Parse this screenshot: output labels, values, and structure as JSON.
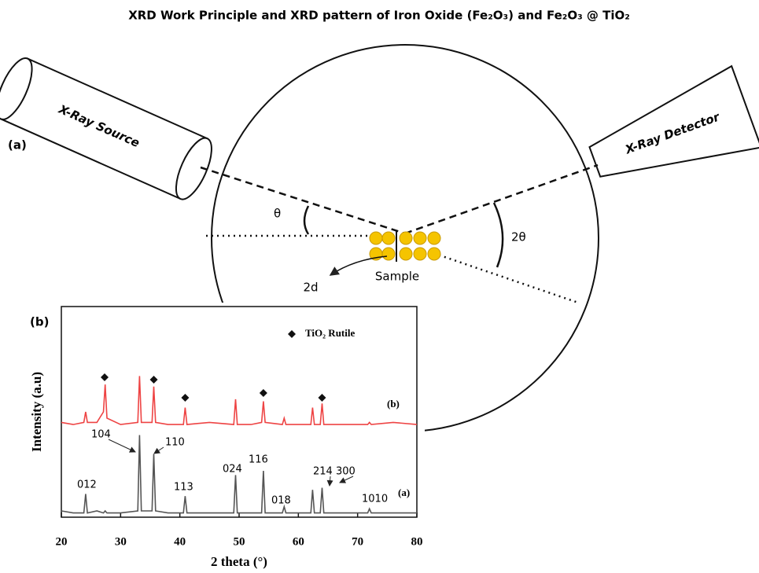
{
  "title": "XRD Work Principle and XRD pattern of Iron Oxide (Fe₂O₃) and Fe₂O₃ @ TiO₂",
  "diagram": {
    "panel_label": "(a)",
    "source": "X-Ray Source",
    "detector": "X-Ray Detector",
    "theta": "θ",
    "two_theta": "2θ",
    "spacing": "2d",
    "sample": "Sample"
  },
  "chart_data": {
    "type": "line",
    "panel_label": "(b)",
    "x_label": "2 theta (°)",
    "y_label": "Intensity (a.u)",
    "xlim": [
      20,
      80
    ],
    "xticks": [
      20,
      30,
      40,
      50,
      60,
      70,
      80
    ],
    "ylim": [
      0,
      100
    ],
    "x": [
      20,
      22,
      23.8,
      24.1,
      24.4,
      26,
      27.1,
      27.4,
      27.7,
      30,
      32.9,
      33.2,
      33.5,
      35.3,
      35.6,
      35.9,
      38,
      40.6,
      40.9,
      41.2,
      45,
      49.1,
      49.4,
      49.7,
      52,
      53.8,
      54.1,
      54.4,
      57.3,
      57.6,
      57.9,
      60,
      62.1,
      62.4,
      62.7,
      63.7,
      64.0,
      64.3,
      68,
      71.7,
      72.0,
      72.3,
      76,
      80
    ],
    "series": [
      {
        "name": "(a)",
        "color": "#555555",
        "values": [
          3,
          2,
          2,
          11,
          2,
          3,
          2,
          3,
          2,
          2,
          3,
          39,
          3,
          3,
          30,
          3,
          2,
          2,
          10,
          2,
          2,
          2,
          20,
          2,
          2,
          2,
          22,
          2,
          2,
          5,
          2,
          2,
          2,
          13,
          2,
          2,
          14,
          2,
          2,
          2,
          4,
          2,
          2,
          2
        ]
      },
      {
        "name": "(b)",
        "color": "#ee4444",
        "values": [
          45,
          44,
          45,
          50,
          45,
          45,
          50,
          63,
          47,
          44,
          45,
          67,
          45,
          45,
          62,
          45,
          44,
          44,
          52,
          44,
          45,
          44,
          56,
          44,
          44,
          45,
          55,
          45,
          44,
          47,
          44,
          44,
          44,
          52,
          44,
          44,
          54,
          44,
          44,
          44,
          45,
          44,
          45,
          44
        ]
      }
    ],
    "markers": {
      "name": "TiO₂ Rutile",
      "x": [
        27.3,
        35.6,
        40.9,
        54.1,
        64.0
      ]
    },
    "peak_labels": [
      "012",
      "104",
      "110",
      "113",
      "024",
      "116",
      "018",
      "214",
      "300",
      "1010"
    ]
  }
}
